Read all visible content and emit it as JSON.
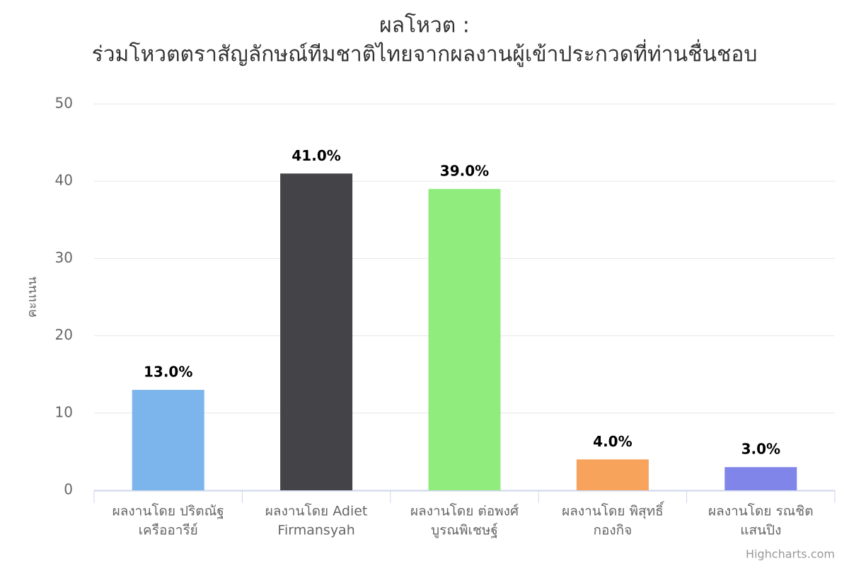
{
  "chart_data": {
    "type": "bar",
    "title": "ผลโหวต :",
    "subtitle": "ร่วมโหวตตราสัญลักษณ์ทีมชาติไทยจากผลงานผู้เข้าประกวดที่ท่านชื่นชอบ",
    "y_label": "คะแนน",
    "categories": [
      [
        "ผลงานโดย ปริตณัฐ",
        "เครืออารีย์"
      ],
      [
        "ผลงานโดย Adiet",
        "Firmansyah"
      ],
      [
        "ผลงานโดย ต่อพงศ์",
        "บูรณพิเชษฐ์"
      ],
      [
        "ผลงานโดย พิสุทธิ์",
        "กองกิจ"
      ],
      [
        "ผลงานโดย รณชิต",
        "แสนปิง"
      ]
    ],
    "values": [
      13,
      41,
      39,
      4,
      3
    ],
    "value_labels": [
      "13.0%",
      "41.0%",
      "39.0%",
      "4.0%",
      "3.0%"
    ],
    "colors": [
      "#7cb5ec",
      "#434348",
      "#90ed7d",
      "#f7a35c",
      "#8085e9"
    ],
    "ylim": [
      0,
      50
    ],
    "yticks": [
      0,
      10,
      20,
      30,
      40,
      50
    ],
    "grid": true,
    "credits": "Highcharts.com"
  }
}
